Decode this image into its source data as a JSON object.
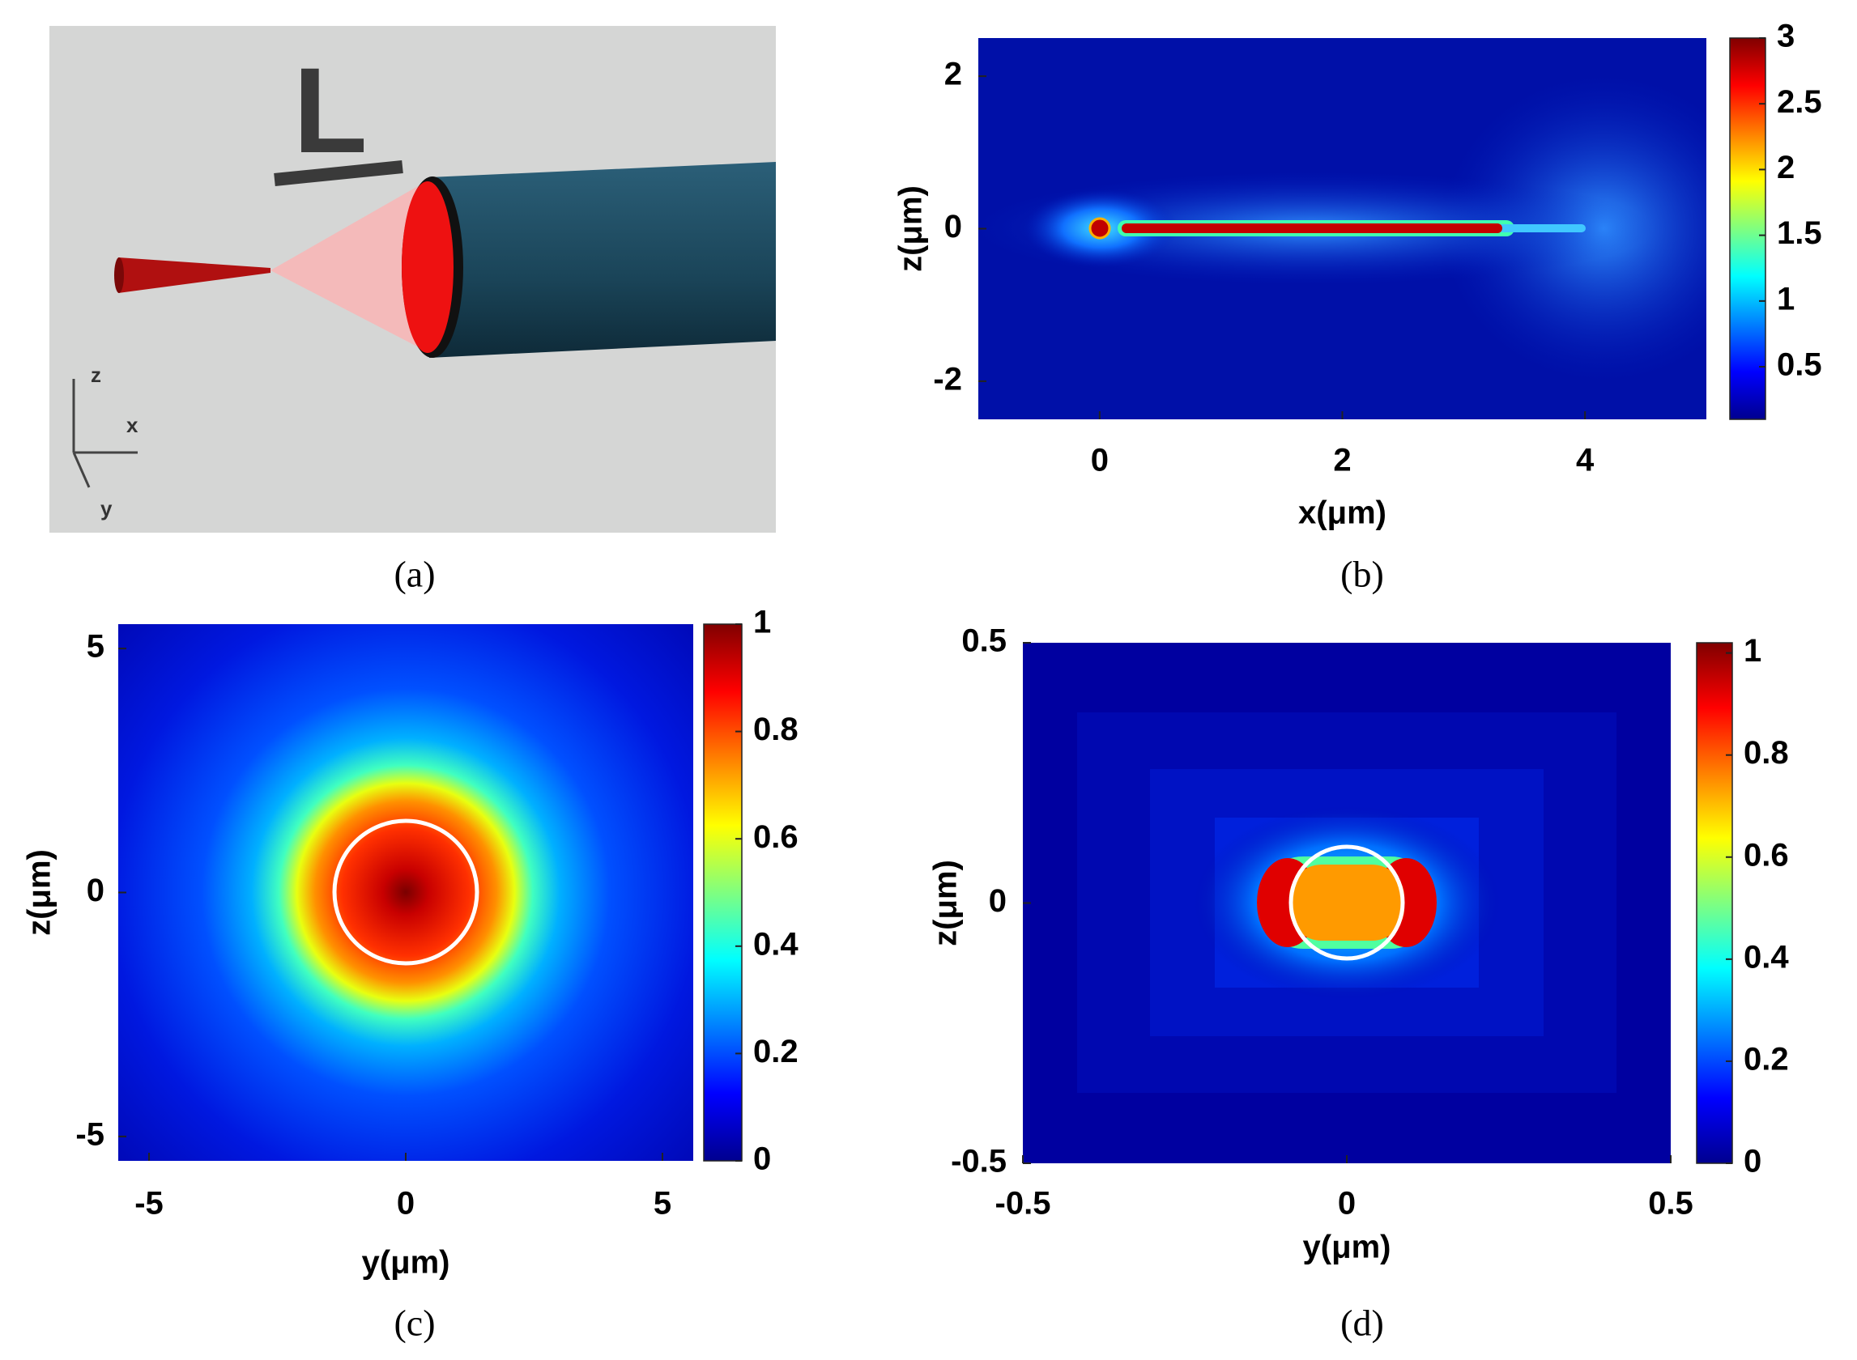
{
  "panel_a": {
    "label": "(a)",
    "marker": "L",
    "axes": [
      "z",
      "x",
      "y"
    ]
  },
  "chart_data": [
    {
      "type": "heatmap",
      "label": "(b)",
      "xlabel": "x(μm)",
      "ylabel": "z(μm)",
      "xlim": [
        -1,
        5
      ],
      "ylim": [
        -2.5,
        2.5
      ],
      "xticks": [
        0,
        2,
        4
      ],
      "yticks": [
        -2,
        0,
        2
      ],
      "colorbar": {
        "lim": [
          0.1,
          3
        ],
        "ticks": [
          0.5,
          1,
          1.5,
          2,
          2.5,
          3
        ]
      }
    },
    {
      "type": "heatmap",
      "label": "(c)",
      "xlabel": "y(μm)",
      "ylabel": "z(μm)",
      "xlim": [
        -5.6,
        5.6
      ],
      "ylim": [
        -5.5,
        5.5
      ],
      "xticks": [
        -5,
        0,
        5
      ],
      "yticks": [
        -5,
        0,
        5
      ],
      "colorbar": {
        "lim": [
          0,
          1
        ],
        "ticks": [
          0,
          0.2,
          0.4,
          0.6,
          0.8,
          1
        ]
      }
    },
    {
      "type": "heatmap",
      "label": "(d)",
      "xlabel": "y(μm)",
      "ylabel": "z(μm)",
      "xlim": [
        -0.5,
        0.5
      ],
      "ylim": [
        -0.5,
        0.5
      ],
      "xticks": [
        -0.5,
        0,
        0.5
      ],
      "yticks": [
        -0.5,
        0,
        0.5
      ],
      "colorbar": {
        "lim": [
          0,
          1.02
        ],
        "ticks": [
          0,
          0.2,
          0.4,
          0.6,
          0.8,
          1
        ]
      }
    }
  ]
}
